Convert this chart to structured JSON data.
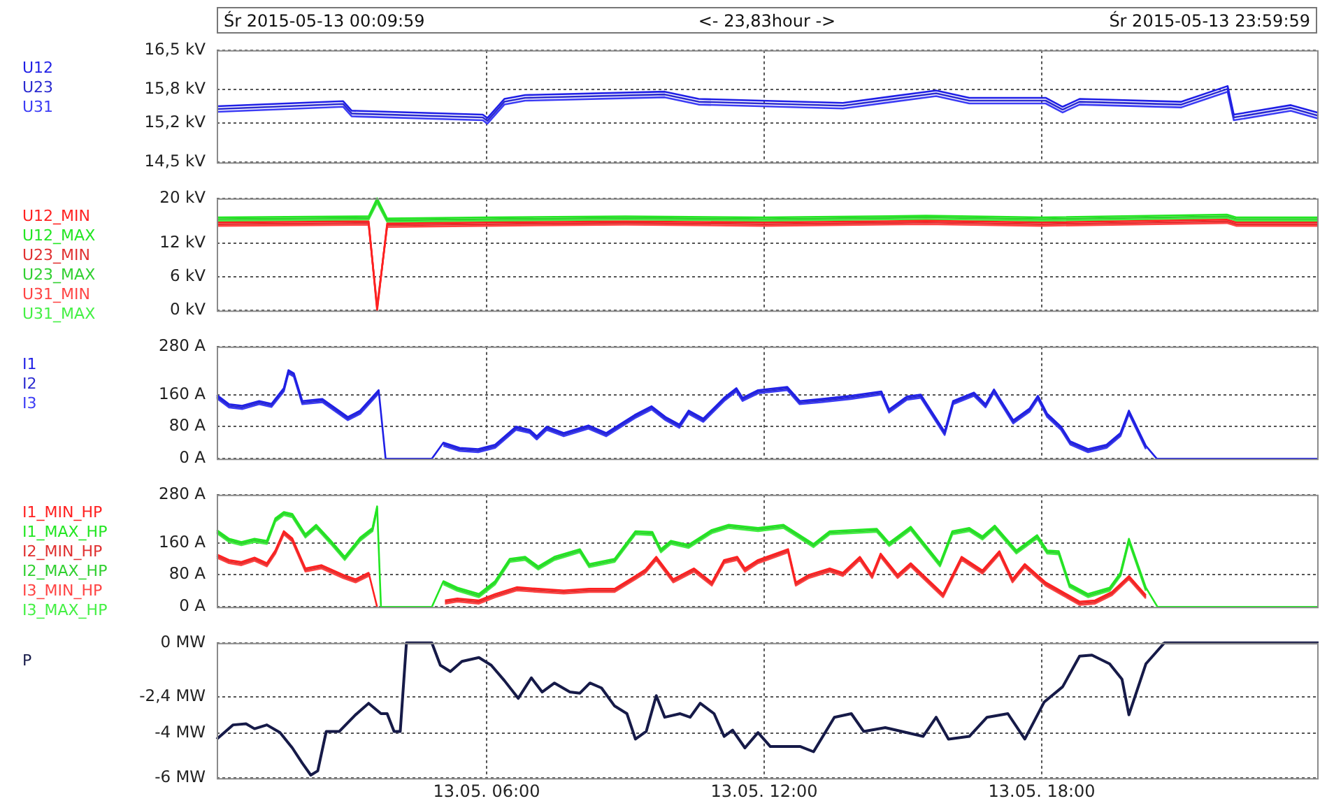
{
  "chart_data": [
    {
      "type": "line",
      "annotations": [
        "Śr 2015-05-13 00:09:59",
        "<- 23,83hour ->",
        "Śr 2015-05-13 23:59:59"
      ],
      "legend": "left",
      "grid": true,
      "tick_labels": "y",
      "xlim": [
        "2015-05-13T00:10",
        "2015-05-13T23:59"
      ],
      "xticks": [
        {
          "value": "2015-05-13T06:00",
          "label": null
        },
        {
          "value": "2015-05-13T12:00",
          "label": null
        },
        {
          "value": "2015-05-13T18:00",
          "label": null
        }
      ],
      "ylim": [
        14.5,
        16.5
      ],
      "yticks": [
        {
          "value": 14.5,
          "label": "14,5 kV"
        },
        {
          "value": 15.2,
          "label": "15,2 kV"
        },
        {
          "value": 15.8,
          "label": "15,8 kV"
        },
        {
          "value": 16.5,
          "label": "16,5 kV"
        }
      ],
      "x": [
        "2015-05-13T00:10",
        "2015-05-13T02:54",
        "2015-05-13T03:05",
        "2015-05-13T05:55",
        "2015-05-13T06:01",
        "2015-05-13T06:23",
        "2015-05-13T06:50",
        "2015-05-13T09:51",
        "2015-05-13T10:35",
        "2015-05-13T13:42",
        "2015-05-13T15:43",
        "2015-05-13T16:26",
        "2015-05-13T18:05",
        "2015-05-13T18:27",
        "2015-05-13T18:49",
        "2015-05-13T21:01",
        "2015-05-13T22:01",
        "2015-05-13T22:09",
        "2015-05-13T23:23",
        "2015-05-13T23:59"
      ],
      "series": [
        {
          "name": "U12",
          "color": "#1f1fe6",
          "values": [
            15.5,
            15.59,
            15.42,
            15.35,
            15.29,
            15.63,
            15.7,
            15.76,
            15.63,
            15.56,
            15.78,
            15.65,
            15.65,
            15.49,
            15.63,
            15.58,
            15.86,
            15.35,
            15.52,
            15.38
          ]
        },
        {
          "name": "U23",
          "color": "#2b2bd0",
          "values": [
            15.45,
            15.54,
            15.37,
            15.3,
            15.24,
            15.58,
            15.65,
            15.71,
            15.58,
            15.51,
            15.73,
            15.6,
            15.6,
            15.44,
            15.58,
            15.53,
            15.81,
            15.3,
            15.47,
            15.33
          ]
        },
        {
          "name": "U31",
          "color": "#3c3cf5",
          "values": [
            15.4,
            15.49,
            15.32,
            15.25,
            15.19,
            15.53,
            15.6,
            15.66,
            15.53,
            15.46,
            15.68,
            15.55,
            15.55,
            15.39,
            15.53,
            15.48,
            15.76,
            15.25,
            15.42,
            15.28
          ]
        }
      ]
    },
    {
      "type": "line",
      "legend": "left",
      "grid": true,
      "tick_labels": "y",
      "xlim": [
        "2015-05-13T00:10",
        "2015-05-13T23:59"
      ],
      "xticks": [
        {
          "value": "2015-05-13T06:00",
          "label": null
        },
        {
          "value": "2015-05-13T12:00",
          "label": null
        },
        {
          "value": "2015-05-13T18:00",
          "label": null
        }
      ],
      "ylim": [
        0,
        20
      ],
      "yticks": [
        {
          "value": 0,
          "label": "0 kV"
        },
        {
          "value": 6,
          "label": "6 kV"
        },
        {
          "value": 12,
          "label": "12 kV"
        },
        {
          "value": 20,
          "label": "20 kV"
        }
      ],
      "x": [
        "2015-05-13T00:10",
        "2015-05-13T03:27",
        "2015-05-13T03:38",
        "2015-05-13T03:51",
        "2015-05-13T06:00",
        "2015-05-13T09:00",
        "2015-05-13T12:00",
        "2015-05-13T15:30",
        "2015-05-13T18:00",
        "2015-05-13T22:00",
        "2015-05-13T22:12",
        "2015-05-13T23:59"
      ],
      "series": [
        {
          "name": "U12_MIN",
          "color": "#ff2020",
          "values": [
            15.7,
            15.9,
            0,
            15.5,
            15.7,
            15.9,
            15.7,
            16,
            15.7,
            16.2,
            15.7,
            15.7
          ]
        },
        {
          "name": "U12_MAX",
          "color": "#22e622",
          "values": [
            16.6,
            16.8,
            20,
            16.4,
            16.6,
            16.8,
            16.6,
            16.9,
            16.6,
            17.1,
            16.6,
            16.6
          ]
        },
        {
          "name": "U23_MIN",
          "color": "#e03030",
          "values": [
            15.4,
            15.6,
            0.4,
            15.2,
            15.4,
            15.6,
            15.4,
            15.7,
            15.4,
            15.9,
            15.4,
            15.4
          ]
        },
        {
          "name": "U23_MAX",
          "color": "#30d030",
          "values": [
            16.3,
            16.5,
            19.6,
            16.1,
            16.3,
            16.5,
            16.3,
            16.6,
            16.3,
            16.8,
            16.3,
            16.3
          ]
        },
        {
          "name": "U31_MIN",
          "color": "#ff4444",
          "values": [
            15.1,
            15.3,
            0.8,
            14.9,
            15.1,
            15.3,
            15.1,
            15.4,
            15.1,
            15.6,
            15.1,
            15.1
          ]
        },
        {
          "name": "U31_MAX",
          "color": "#44f044",
          "values": [
            16,
            16.2,
            19.2,
            15.8,
            16,
            16.2,
            16,
            16.3,
            16,
            16.5,
            16,
            16
          ]
        }
      ]
    },
    {
      "type": "line",
      "legend": "left",
      "grid": true,
      "tick_labels": "y",
      "xlim": [
        "2015-05-13T00:10",
        "2015-05-13T23:59"
      ],
      "xticks": [
        {
          "value": "2015-05-13T06:00",
          "label": null
        },
        {
          "value": "2015-05-13T12:00",
          "label": null
        },
        {
          "value": "2015-05-13T18:00",
          "label": null
        }
      ],
      "ylim": [
        0,
        280
      ],
      "yticks": [
        {
          "value": 0,
          "label": "0 A"
        },
        {
          "value": 80,
          "label": "80 A"
        },
        {
          "value": 160,
          "label": "160 A"
        },
        {
          "value": 280,
          "label": "280 A"
        }
      ],
      "x": [
        "2015-05-13T00:10",
        "2015-05-13T00:26",
        "2015-05-13T00:43",
        "2015-05-13T01:05",
        "2015-05-13T01:21",
        "2015-05-13T01:37",
        "2015-05-13T01:43",
        "2015-05-13T01:50",
        "2015-05-13T02:01",
        "2015-05-13T02:27",
        "2015-05-13T03:00",
        "2015-05-13T03:16",
        "2015-05-13T03:40",
        "2015-05-13T03:49",
        "2015-05-13T04:49",
        "2015-05-13T05:04",
        "2015-05-13T05:25",
        "2015-05-13T05:49",
        "2015-05-13T06:11",
        "2015-05-13T06:38",
        "2015-05-13T06:56",
        "2015-05-13T07:05",
        "2015-05-13T07:18",
        "2015-05-13T07:40",
        "2015-05-13T08:12",
        "2015-05-13T08:35",
        "2015-05-13T09:12",
        "2015-05-13T09:34",
        "2015-05-13T09:52",
        "2015-05-13T10:10",
        "2015-05-13T10:22",
        "2015-05-13T10:41",
        "2015-05-13T11:08",
        "2015-05-13T11:24",
        "2015-05-13T11:32",
        "2015-05-13T11:52",
        "2015-05-13T12:30",
        "2015-05-13T12:46",
        "2015-05-13T13:14",
        "2015-05-13T13:52",
        "2015-05-13T14:32",
        "2015-05-13T14:42",
        "2015-05-13T15:05",
        "2015-05-13T15:23",
        "2015-05-13T15:38",
        "2015-05-13T15:54",
        "2015-05-13T16:05",
        "2015-05-13T16:32",
        "2015-05-13T16:47",
        "2015-05-13T16:58",
        "2015-05-13T17:23",
        "2015-05-13T17:44",
        "2015-05-13T17:55",
        "2015-05-13T18:07",
        "2015-05-13T18:25",
        "2015-05-13T18:37",
        "2015-05-13T19:00",
        "2015-05-13T19:24",
        "2015-05-13T19:42",
        "2015-05-13T19:53",
        "2015-05-13T20:15",
        "2015-05-13T20:29",
        "2015-05-13T23:59"
      ],
      "series": [
        {
          "name": "I1",
          "color": "#1f1fe6",
          "values": [
            159,
            136,
            132,
            144,
            137,
            176,
            221,
            213,
            144,
            149,
            104,
            120,
            171,
            0,
            0,
            40,
            27,
            24,
            35,
            80,
            72,
            56,
            80,
            64,
            83,
            64,
            109,
            131,
            104,
            85,
            120,
            100,
            152,
            176,
            152,
            171,
            179,
            144,
            149,
            157,
            168,
            123,
            155,
            160,
            115,
            67,
            144,
            165,
            136,
            173,
            96,
            125,
            157,
            112,
            80,
            43,
            24,
            35,
            64,
            120,
            32,
            0,
            0
          ]
        },
        {
          "name": "I2",
          "color": "#2b2bd0",
          "values": [
            155,
            132,
            128,
            140,
            133,
            172,
            217,
            209,
            140,
            145,
            100,
            116,
            167,
            null,
            null,
            36,
            23,
            20,
            31,
            76,
            68,
            52,
            76,
            60,
            79,
            60,
            105,
            127,
            100,
            81,
            116,
            96,
            148,
            172,
            148,
            167,
            175,
            140,
            145,
            153,
            164,
            119,
            151,
            156,
            111,
            63,
            140,
            161,
            132,
            169,
            92,
            121,
            153,
            108,
            76,
            39,
            20,
            31,
            60,
            116,
            28,
            null,
            null
          ]
        },
        {
          "name": "I3",
          "color": "#3c3cf5",
          "values": [
            151,
            128,
            124,
            136,
            129,
            168,
            213,
            205,
            136,
            141,
            96,
            112,
            163,
            null,
            null,
            32,
            19,
            16,
            27,
            72,
            64,
            48,
            72,
            56,
            75,
            56,
            101,
            123,
            96,
            77,
            112,
            92,
            144,
            168,
            144,
            163,
            171,
            136,
            141,
            149,
            160,
            115,
            147,
            152,
            107,
            59,
            136,
            157,
            128,
            165,
            88,
            117,
            149,
            104,
            72,
            35,
            16,
            27,
            56,
            112,
            24,
            null,
            null
          ]
        }
      ]
    },
    {
      "type": "line",
      "legend": "left",
      "grid": true,
      "tick_labels": "y",
      "xlim": [
        "2015-05-13T00:10",
        "2015-05-13T23:59"
      ],
      "xticks": [
        {
          "value": "2015-05-13T06:00",
          "label": null
        },
        {
          "value": "2015-05-13T12:00",
          "label": null
        },
        {
          "value": "2015-05-13T18:00",
          "label": null
        }
      ],
      "ylim": [
        0,
        280
      ],
      "yticks": [
        {
          "value": 0,
          "label": "0 A"
        },
        {
          "value": 80,
          "label": "80 A"
        },
        {
          "value": 160,
          "label": "160 A"
        },
        {
          "value": 280,
          "label": "280 A"
        }
      ],
      "x": [
        "2015-05-13T00:10",
        "2015-05-13T00:26",
        "2015-05-13T00:42",
        "2015-05-13T00:59",
        "2015-05-13T01:15",
        "2015-05-13T01:26",
        "2015-05-13T01:37",
        "2015-05-13T01:48",
        "2015-05-13T02:05",
        "2015-05-13T02:26",
        "2015-05-13T02:54",
        "2015-05-13T03:10",
        "2015-05-13T03:27",
        "2015-05-13T03:38",
        "2015-05-13T04:49",
        "2015-05-13T05:06",
        "2015-05-13T05:22",
        "2015-05-13T05:50",
        "2015-05-13T06:11",
        "2015-05-13T06:39",
        "2015-05-13T07:07",
        "2015-05-13T07:40",
        "2015-05-13T08:13",
        "2015-05-13T08:46",
        "2015-05-13T09:13",
        "2015-05-13T09:26",
        "2015-05-13T09:40",
        "2015-05-13T10:02",
        "2015-05-13T10:29",
        "2015-05-13T10:52",
        "2015-05-13T11:08",
        "2015-05-13T11:25",
        "2015-05-13T11:35",
        "2015-05-13T11:52",
        "2015-05-13T12:31",
        "2015-05-13T12:41",
        "2015-05-13T12:58",
        "2015-05-13T13:25",
        "2015-05-13T13:42",
        "2015-05-13T14:04",
        "2015-05-13T14:20",
        "2015-05-13T14:31",
        "2015-05-13T14:53",
        "2015-05-13T15:10",
        "2015-05-13T15:52",
        "2015-05-13T16:16",
        "2015-05-13T16:43",
        "2015-05-13T17:05",
        "2015-05-13T17:22",
        "2015-05-13T17:38",
        "2015-05-13T18:05",
        "2015-05-13T18:27",
        "2015-05-13T18:49",
        "2015-05-13T19:09",
        "2015-05-13T19:31",
        "2015-05-13T19:53",
        "2015-05-13T20:15"
      ],
      "series": [
        {
          "name": "I1_MIN_HP",
          "color": "#ff2020",
          "values": [
            131,
            117,
            112,
            123,
            109,
            141,
            189,
            171,
            96,
            104,
            80,
            69,
            85,
            0,
            null,
            16,
            21,
            16,
            32,
            49,
            45,
            41,
            45,
            45,
            77,
            93,
            125,
            69,
            96,
            61,
            117,
            125,
            96,
            117,
            144,
            61,
            80,
            96,
            85,
            125,
            80,
            133,
            80,
            109,
            32,
            125,
            91,
            139,
            69,
            107,
            61,
            37,
            13,
            16,
            37,
            77,
            29
          ]
        },
        {
          "name": "I1_MAX_HP",
          "color": "#22e622",
          "x": [
            "2015-05-13T00:10",
            "2015-05-13T00:26",
            "2015-05-13T00:42",
            "2015-05-13T00:59",
            "2015-05-13T01:15",
            "2015-05-13T01:26",
            "2015-05-13T01:37",
            "2015-05-13T01:48",
            "2015-05-13T02:05",
            "2015-05-13T02:19",
            "2015-05-13T02:38",
            "2015-05-13T02:56",
            "2015-05-13T03:16",
            "2015-05-13T03:32",
            "2015-05-13T03:38",
            "2015-05-13T03:43",
            "2015-05-13T04:49",
            "2015-05-13T05:04",
            "2015-05-13T05:22",
            "2015-05-13T05:50",
            "2015-05-13T06:11",
            "2015-05-13T06:30",
            "2015-05-13T06:50",
            "2015-05-13T07:07",
            "2015-05-13T07:28",
            "2015-05-13T08:01",
            "2015-05-13T08:13",
            "2015-05-13T08:46",
            "2015-05-13T09:13",
            "2015-05-13T09:35",
            "2015-05-13T09:46",
            "2015-05-13T09:59",
            "2015-05-13T10:22",
            "2015-05-13T10:52",
            "2015-05-13T11:14",
            "2015-05-13T11:52",
            "2015-05-13T12:25",
            "2015-05-13T13:04",
            "2015-05-13T13:25",
            "2015-05-13T14:26",
            "2015-05-13T14:42",
            "2015-05-13T15:10",
            "2015-05-13T15:48",
            "2015-05-13T16:04",
            "2015-05-13T16:26",
            "2015-05-13T16:43",
            "2015-05-13T16:59",
            "2015-05-13T17:27",
            "2015-05-13T17:54",
            "2015-05-13T18:07",
            "2015-05-13T18:22",
            "2015-05-13T18:36",
            "2015-05-13T19:00",
            "2015-05-13T19:28",
            "2015-05-13T19:42",
            "2015-05-13T19:53",
            "2015-05-13T20:15",
            "2015-05-13T20:30",
            "2015-05-13T23:59"
          ],
          "values": [
            192,
            170,
            162,
            170,
            165,
            221,
            237,
            232,
            181,
            205,
            165,
            125,
            173,
            197,
            251,
            0,
            0,
            64,
            48,
            32,
            64,
            120,
            125,
            101,
            125,
            144,
            107,
            120,
            189,
            187,
            144,
            165,
            155,
            192,
            205,
            197,
            205,
            157,
            189,
            195,
            160,
            200,
            109,
            189,
            197,
            176,
            203,
            141,
            179,
            141,
            139,
            57,
            32,
            48,
            85,
            170,
            48,
            0,
            0
          ]
        },
        {
          "name": "I2_MIN_HP",
          "color": "#e03030",
          "values": [
            127,
            113,
            108,
            119,
            105,
            137,
            185,
            167,
            92,
            100,
            76,
            65,
            81,
            null,
            null,
            12,
            17,
            12,
            28,
            45,
            41,
            37,
            41,
            41,
            73,
            89,
            121,
            65,
            92,
            57,
            113,
            121,
            92,
            113,
            140,
            57,
            76,
            92,
            81,
            121,
            76,
            129,
            76,
            105,
            28,
            121,
            87,
            135,
            65,
            103,
            57,
            33,
            9,
            12,
            33,
            73,
            25
          ]
        },
        {
          "name": "I2_MAX_HP",
          "color": "#30d030",
          "x": [
            "2015-05-13T00:10",
            "2015-05-13T00:26",
            "2015-05-13T00:42",
            "2015-05-13T00:59",
            "2015-05-13T01:15",
            "2015-05-13T01:26",
            "2015-05-13T01:37",
            "2015-05-13T01:48",
            "2015-05-13T02:05",
            "2015-05-13T02:19",
            "2015-05-13T02:38",
            "2015-05-13T02:56",
            "2015-05-13T03:16",
            "2015-05-13T03:32",
            "2015-05-13T03:38",
            "2015-05-13T03:43",
            "2015-05-13T04:49",
            "2015-05-13T05:04",
            "2015-05-13T05:22",
            "2015-05-13T05:50",
            "2015-05-13T06:11",
            "2015-05-13T06:30",
            "2015-05-13T06:50",
            "2015-05-13T07:07",
            "2015-05-13T07:28",
            "2015-05-13T08:01",
            "2015-05-13T08:13",
            "2015-05-13T08:46",
            "2015-05-13T09:13",
            "2015-05-13T09:35",
            "2015-05-13T09:46",
            "2015-05-13T09:59",
            "2015-05-13T10:22",
            "2015-05-13T10:52",
            "2015-05-13T11:14",
            "2015-05-13T11:52",
            "2015-05-13T12:25",
            "2015-05-13T13:04",
            "2015-05-13T13:25",
            "2015-05-13T14:26",
            "2015-05-13T14:42",
            "2015-05-13T15:10",
            "2015-05-13T15:48",
            "2015-05-13T16:04",
            "2015-05-13T16:26",
            "2015-05-13T16:43",
            "2015-05-13T16:59",
            "2015-05-13T17:27",
            "2015-05-13T17:54",
            "2015-05-13T18:07",
            "2015-05-13T18:22",
            "2015-05-13T18:36",
            "2015-05-13T19:00",
            "2015-05-13T19:28",
            "2015-05-13T19:42",
            "2015-05-13T19:53",
            "2015-05-13T20:15"
          ],
          "values": [
            188,
            166,
            158,
            166,
            161,
            217,
            233,
            228,
            177,
            201,
            161,
            121,
            169,
            193,
            247,
            null,
            null,
            60,
            44,
            28,
            60,
            116,
            121,
            97,
            121,
            140,
            103,
            116,
            185,
            183,
            140,
            161,
            151,
            188,
            201,
            193,
            201,
            153,
            185,
            191,
            156,
            196,
            105,
            185,
            193,
            172,
            199,
            137,
            175,
            137,
            135,
            53,
            28,
            44,
            81,
            166,
            44
          ]
        },
        {
          "name": "I3_MIN_HP",
          "color": "#ff4444",
          "values": [
            123,
            109,
            104,
            115,
            101,
            133,
            181,
            163,
            88,
            96,
            72,
            61,
            77,
            null,
            null,
            8,
            13,
            8,
            24,
            41,
            37,
            33,
            37,
            37,
            69,
            85,
            117,
            61,
            88,
            53,
            109,
            117,
            88,
            109,
            136,
            53,
            72,
            88,
            77,
            117,
            72,
            125,
            72,
            101,
            24,
            117,
            83,
            131,
            61,
            99,
            53,
            29,
            5,
            8,
            29,
            69,
            21
          ]
        },
        {
          "name": "I3_MAX_HP",
          "color": "#44f044",
          "x": [
            "2015-05-13T00:10",
            "2015-05-13T00:26",
            "2015-05-13T00:42",
            "2015-05-13T00:59",
            "2015-05-13T01:15",
            "2015-05-13T01:26",
            "2015-05-13T01:37",
            "2015-05-13T01:48",
            "2015-05-13T02:05",
            "2015-05-13T02:19",
            "2015-05-13T02:38",
            "2015-05-13T02:56",
            "2015-05-13T03:16",
            "2015-05-13T03:32",
            "2015-05-13T03:38",
            "2015-05-13T03:43",
            "2015-05-13T04:49",
            "2015-05-13T05:04",
            "2015-05-13T05:22",
            "2015-05-13T05:50",
            "2015-05-13T06:11",
            "2015-05-13T06:30",
            "2015-05-13T06:50",
            "2015-05-13T07:07",
            "2015-05-13T07:28",
            "2015-05-13T08:01",
            "2015-05-13T08:13",
            "2015-05-13T08:46",
            "2015-05-13T09:13",
            "2015-05-13T09:35",
            "2015-05-13T09:46",
            "2015-05-13T09:59",
            "2015-05-13T10:22",
            "2015-05-13T10:52",
            "2015-05-13T11:14",
            "2015-05-13T11:52",
            "2015-05-13T12:25",
            "2015-05-13T13:04",
            "2015-05-13T13:25",
            "2015-05-13T14:26",
            "2015-05-13T14:42",
            "2015-05-13T15:10",
            "2015-05-13T15:48",
            "2015-05-13T16:04",
            "2015-05-13T16:26",
            "2015-05-13T16:43",
            "2015-05-13T16:59",
            "2015-05-13T17:27",
            "2015-05-13T17:54",
            "2015-05-13T18:07",
            "2015-05-13T18:22",
            "2015-05-13T18:36",
            "2015-05-13T19:00",
            "2015-05-13T19:28",
            "2015-05-13T19:42",
            "2015-05-13T19:53",
            "2015-05-13T20:15"
          ],
          "values": [
            184,
            162,
            154,
            162,
            157,
            213,
            229,
            224,
            173,
            197,
            157,
            117,
            165,
            189,
            243,
            null,
            null,
            56,
            40,
            24,
            56,
            112,
            117,
            93,
            117,
            136,
            99,
            112,
            181,
            179,
            136,
            157,
            147,
            184,
            197,
            189,
            197,
            149,
            181,
            187,
            152,
            192,
            101,
            181,
            189,
            168,
            195,
            133,
            171,
            133,
            131,
            49,
            24,
            40,
            77,
            162,
            40
          ]
        }
      ]
    },
    {
      "type": "line",
      "legend": "left",
      "grid": true,
      "xlim": [
        "2015-05-13T00:10",
        "2015-05-13T23:59"
      ],
      "xticks": [
        {
          "value": "2015-05-13T06:00",
          "label": "13.05. 06:00"
        },
        {
          "value": "2015-05-13T12:00",
          "label": "13.05. 12:00"
        },
        {
          "value": "2015-05-13T18:00",
          "label": "13.05. 18:00"
        }
      ],
      "ylim": [
        -6,
        0
      ],
      "yticks": [
        {
          "value": -6,
          "label": "-6 MW"
        },
        {
          "value": -4,
          "label": "-4 MW"
        },
        {
          "value": -2.4,
          "label": "-2,4 MW"
        },
        {
          "value": 0,
          "label": "0 MW"
        }
      ],
      "x": [
        "2015-05-13T00:10",
        "2015-05-13T00:31",
        "2015-05-13T00:48",
        "2015-05-13T00:59",
        "2015-05-13T01:15",
        "2015-05-13T01:32",
        "2015-05-13T01:48",
        "2015-05-13T02:01",
        "2015-05-13T02:12",
        "2015-05-13T02:21",
        "2015-05-13T02:32",
        "2015-05-13T02:49",
        "2015-05-13T03:10",
        "2015-05-13T03:27",
        "2015-05-13T03:43",
        "2015-05-13T03:51",
        "2015-05-13T04:00",
        "2015-05-13T04:08",
        "2015-05-13T04:16",
        "2015-05-13T04:49",
        "2015-05-13T05:00",
        "2015-05-13T05:13",
        "2015-05-13T05:28",
        "2015-05-13T05:50",
        "2015-05-13T06:06",
        "2015-05-13T06:23",
        "2015-05-13T06:41",
        "2015-05-13T06:58",
        "2015-05-13T07:12",
        "2015-05-13T07:28",
        "2015-05-13T07:48",
        "2015-05-13T08:01",
        "2015-05-13T08:14",
        "2015-05-13T08:29",
        "2015-05-13T08:46",
        "2015-05-13T09:02",
        "2015-05-13T09:13",
        "2015-05-13T09:27",
        "2015-05-13T09:40",
        "2015-05-13T09:51",
        "2015-05-13T10:11",
        "2015-05-13T10:24",
        "2015-05-13T10:37",
        "2015-05-13T10:55",
        "2015-05-13T11:08",
        "2015-05-13T11:19",
        "2015-05-13T11:35",
        "2015-05-13T11:52",
        "2015-05-13T12:08",
        "2015-05-13T12:47",
        "2015-05-13T13:04",
        "2015-05-13T13:31",
        "2015-05-13T13:53",
        "2015-05-13T14:09",
        "2015-05-13T14:37",
        "2015-05-13T15:26",
        "2015-05-13T15:43",
        "2015-05-13T15:59",
        "2015-05-13T16:26",
        "2015-05-13T16:49",
        "2015-05-13T17:16",
        "2015-05-13T17:38",
        "2015-05-13T18:03",
        "2015-05-13T18:27",
        "2015-05-13T18:49",
        "2015-05-13T19:05",
        "2015-05-13T19:28",
        "2015-05-13T19:44",
        "2015-05-13T19:53",
        "2015-05-13T20:15",
        "2015-05-13T20:39",
        "2015-05-13T23:59"
      ],
      "series": [
        {
          "name": "P",
          "color": "#161a48",
          "values": [
            -4.27,
            -3.64,
            -3.59,
            -3.81,
            -3.64,
            -3.98,
            -4.66,
            -5.34,
            -5.87,
            -5.68,
            -3.93,
            -3.93,
            -3.19,
            -2.68,
            -3.14,
            -3.14,
            -3.93,
            -3.93,
            0,
            0,
            -0.99,
            -1.27,
            -0.82,
            -0.65,
            -0.99,
            -1.67,
            -2.46,
            -1.55,
            -2.18,
            -1.78,
            -2.18,
            -2.23,
            -1.78,
            -2.0,
            -2.8,
            -3.14,
            -4.27,
            -3.93,
            -2.34,
            -3.3,
            -3.14,
            -3.3,
            -2.68,
            -3.14,
            -4.15,
            -3.87,
            -4.66,
            -3.98,
            -4.6,
            -4.6,
            -4.83,
            -3.3,
            -3.14,
            -3.93,
            -3.76,
            -4.15,
            -3.3,
            -4.27,
            -4.15,
            -3.3,
            -3.14,
            -4.27,
            -2.63,
            -1.95,
            -0.59,
            -0.54,
            -0.93,
            -1.61,
            -3.19,
            -0.93,
            0,
            0
          ]
        }
      ]
    }
  ]
}
